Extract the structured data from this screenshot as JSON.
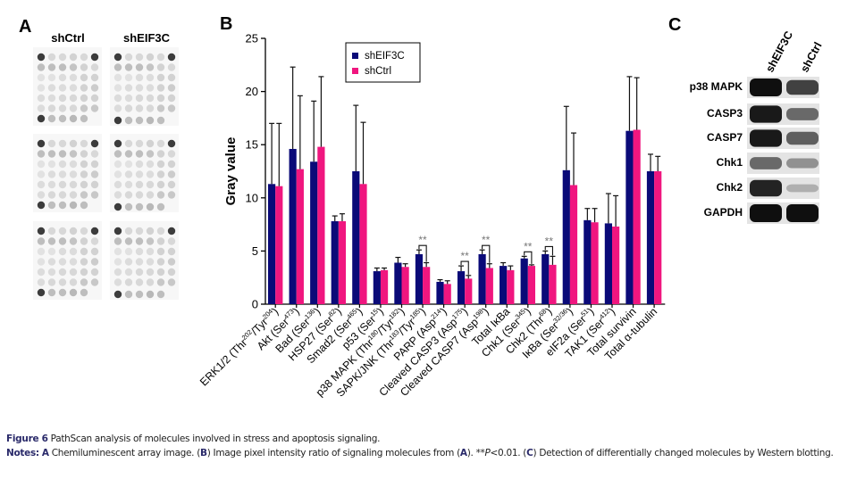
{
  "panel_a": {
    "label": "A",
    "columns": [
      "shCtrl",
      "shEIF3C"
    ]
  },
  "panel_b": {
    "label": "B"
  },
  "panel_c": {
    "label": "C",
    "lanes": [
      "shEIF3C",
      "shCtrl"
    ],
    "rows": [
      {
        "name": "p38 MAPK",
        "band_intensity": [
          1.0,
          0.75
        ]
      },
      {
        "name": "CASP3",
        "band_intensity": [
          0.95,
          0.55
        ]
      },
      {
        "name": "CASP7",
        "band_intensity": [
          0.95,
          0.6
        ]
      },
      {
        "name": "Chk1",
        "band_intensity": [
          0.55,
          0.35
        ]
      },
      {
        "name": "Chk2",
        "band_intensity": [
          0.9,
          0.2
        ]
      },
      {
        "name": "GAPDH",
        "band_intensity": [
          1.0,
          1.0
        ]
      }
    ]
  },
  "chart_data": {
    "type": "bar",
    "title": "",
    "xlabel": "",
    "ylabel": "Gray value",
    "ylim": [
      0,
      25
    ],
    "yticks": [
      0,
      5,
      10,
      15,
      20,
      25
    ],
    "grid": false,
    "legend_placement": "top-left",
    "colors": {
      "shEIF3C": "#0a0a78",
      "shCtrl": "#f0167f"
    },
    "categories": [
      [
        [
          "t",
          "ERK1/2 (Thr"
        ],
        [
          "s",
          "202"
        ],
        [
          "t",
          "/Tyr"
        ],
        [
          "s",
          "204"
        ],
        [
          "t",
          ")"
        ]
      ],
      [
        [
          "t",
          "Akt (Ser"
        ],
        [
          "s",
          "473"
        ],
        [
          "t",
          ")"
        ]
      ],
      [
        [
          "t",
          "Bad (Ser"
        ],
        [
          "s",
          "136"
        ],
        [
          "t",
          ")"
        ]
      ],
      [
        [
          "t",
          "HSP27 (Ser"
        ],
        [
          "s",
          "82"
        ],
        [
          "t",
          ")"
        ]
      ],
      [
        [
          "t",
          "Smad2 (Ser"
        ],
        [
          "s",
          "465"
        ],
        [
          "t",
          ")"
        ]
      ],
      [
        [
          "t",
          "p53 (Ser"
        ],
        [
          "s",
          "15"
        ],
        [
          "t",
          ")"
        ]
      ],
      [
        [
          "t",
          "p38 MAPK (Thr"
        ],
        [
          "s",
          "180"
        ],
        [
          "t",
          "/Tyr"
        ],
        [
          "s",
          "182"
        ],
        [
          "t",
          ")"
        ]
      ],
      [
        [
          "t",
          "SAPK/JNK (Thr"
        ],
        [
          "s",
          "183"
        ],
        [
          "t",
          "/Tyr"
        ],
        [
          "s",
          "185"
        ],
        [
          "t",
          ")"
        ]
      ],
      [
        [
          "t",
          "PARP (Asp"
        ],
        [
          "s",
          "214"
        ],
        [
          "t",
          ")"
        ]
      ],
      [
        [
          "t",
          "Cleaved CASP3 (Asp"
        ],
        [
          "s",
          "175"
        ],
        [
          "t",
          ")"
        ]
      ],
      [
        [
          "t",
          "Cleaved CASP7 (Asp"
        ],
        [
          "s",
          "198"
        ],
        [
          "t",
          ")"
        ]
      ],
      [
        [
          "t",
          "Total IκBa"
        ]
      ],
      [
        [
          "t",
          "Chk1 (Ser"
        ],
        [
          "s",
          "345"
        ],
        [
          "t",
          ")"
        ]
      ],
      [
        [
          "t",
          "Chk2 (Thr"
        ],
        [
          "s",
          "68"
        ],
        [
          "t",
          ")"
        ]
      ],
      [
        [
          "t",
          "IκBa (Ser"
        ],
        [
          "s",
          "32/36"
        ],
        [
          "t",
          ")"
        ]
      ],
      [
        [
          "t",
          "eIF2a (Ser"
        ],
        [
          "s",
          "51"
        ],
        [
          "t",
          ")"
        ]
      ],
      [
        [
          "t",
          "TAK1 (Ser"
        ],
        [
          "s",
          "412"
        ],
        [
          "t",
          ")"
        ]
      ],
      [
        [
          "t",
          "Total survivin"
        ]
      ],
      [
        [
          "t",
          "Total α-tubulin"
        ]
      ]
    ],
    "series": [
      {
        "name": "shEIF3C",
        "values": [
          11.3,
          14.6,
          13.4,
          7.8,
          12.5,
          3.1,
          3.9,
          4.7,
          2.1,
          3.1,
          4.7,
          3.6,
          4.3,
          4.7,
          12.6,
          7.9,
          7.6,
          16.3,
          12.5
        ],
        "error_upper": [
          17.0,
          22.3,
          19.1,
          8.3,
          18.7,
          3.4,
          4.4,
          5.1,
          2.3,
          3.6,
          5.1,
          3.9,
          4.5,
          5.0,
          18.6,
          9.0,
          10.4,
          21.4,
          14.1
        ]
      },
      {
        "name": "shCtrl",
        "values": [
          11.1,
          12.7,
          14.8,
          7.8,
          11.3,
          3.2,
          3.5,
          3.5,
          1.9,
          2.4,
          3.4,
          3.2,
          3.6,
          3.7,
          11.2,
          7.7,
          7.3,
          16.4,
          12.5
        ],
        "error_upper": [
          17.0,
          19.6,
          21.4,
          8.5,
          17.1,
          3.4,
          3.8,
          3.9,
          2.2,
          2.7,
          3.8,
          3.6,
          3.7,
          4.5,
          16.1,
          9.0,
          10.2,
          21.3,
          13.9
        ]
      }
    ],
    "significance": {
      "marker": "**",
      "categories_index": [
        7,
        9,
        10,
        12,
        13
      ]
    }
  },
  "caption": {
    "figure_label": "Figure 6",
    "title": "PathScan analysis of molecules involved in stress and apoptosis signaling.",
    "notes_label": "Notes:",
    "notes": [
      {
        "b": "A"
      },
      {
        "t": " Chemiluminescent array image. ("
      },
      {
        "b": "B"
      },
      {
        "t": ") Image pixel intensity ratio of signaling molecules from ("
      },
      {
        "b": "A"
      },
      {
        "t": "). **"
      },
      {
        "i": "P"
      },
      {
        "t": "<0.01. ("
      },
      {
        "b": "C"
      },
      {
        "t": ") Detection of differentially changed molecules by Western blotting."
      }
    ]
  }
}
